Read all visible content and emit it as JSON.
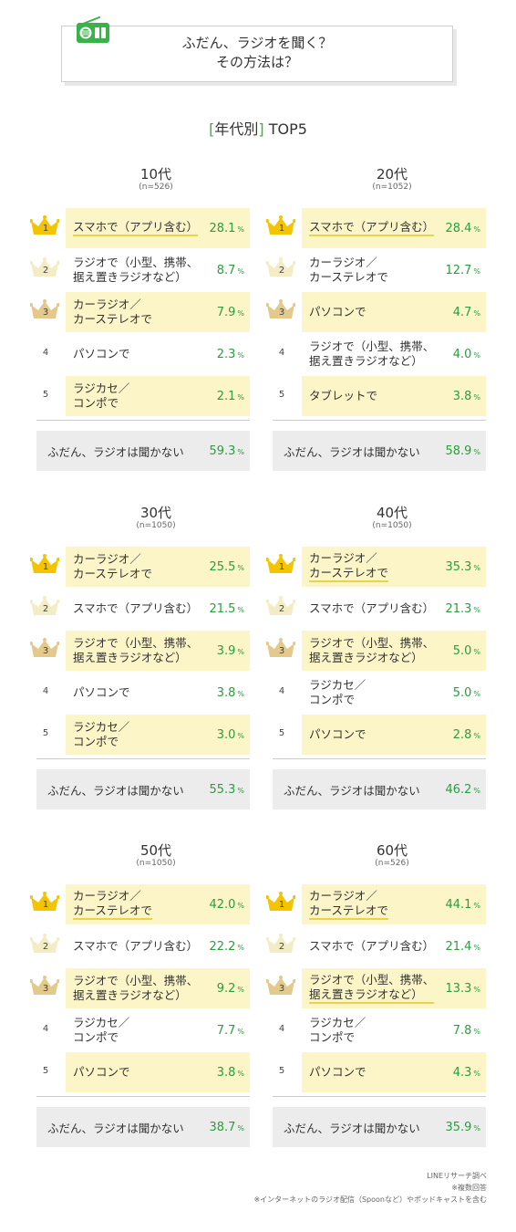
{
  "header": {
    "title_line1": "ふだん、ラジオを聞く？",
    "title_line2": "その方法は？",
    "icon": "radio-icon"
  },
  "section": {
    "bracket_open": "[",
    "label": "年代別",
    "bracket_close": "]",
    "suffix": "TOP5"
  },
  "chart_data": [
    {
      "type": "table",
      "age": "10代",
      "n": "(n=526)",
      "rows": [
        {
          "rank": "1",
          "label": "スマホで（アプリ含む）",
          "value": "28.1",
          "highlight": true,
          "underline": true
        },
        {
          "rank": "2",
          "label": "ラジオで（小型、携帯、\n据え置きラジオなど）",
          "value": "8.7",
          "highlight": false,
          "underline": false
        },
        {
          "rank": "3",
          "label": "カーラジオ／\nカーステレオで",
          "value": "7.9",
          "highlight": true,
          "underline": false
        },
        {
          "rank": "4",
          "label": "パソコンで",
          "value": "2.3",
          "highlight": false,
          "underline": false
        },
        {
          "rank": "5",
          "label": "ラジカセ／\nコンポで",
          "value": "2.1",
          "highlight": true,
          "underline": false
        }
      ],
      "no_radio": {
        "label": "ふだん、ラジオは聞かない",
        "value": "59.3"
      }
    },
    {
      "type": "table",
      "age": "20代",
      "n": "(n=1052)",
      "rows": [
        {
          "rank": "1",
          "label": "スマホで（アプリ含む）",
          "value": "28.4",
          "highlight": true,
          "underline": true
        },
        {
          "rank": "2",
          "label": "カーラジオ／\nカーステレオで",
          "value": "12.7",
          "highlight": false,
          "underline": false
        },
        {
          "rank": "3",
          "label": "パソコンで",
          "value": "4.7",
          "highlight": true,
          "underline": false
        },
        {
          "rank": "4",
          "label": "ラジオで（小型、携帯、\n据え置きラジオなど）",
          "value": "4.0",
          "highlight": false,
          "underline": false
        },
        {
          "rank": "5",
          "label": "タブレットで",
          "value": "3.8",
          "highlight": true,
          "underline": false
        }
      ],
      "no_radio": {
        "label": "ふだん、ラジオは聞かない",
        "value": "58.9"
      }
    },
    {
      "type": "table",
      "age": "30代",
      "n": "(n=1050)",
      "rows": [
        {
          "rank": "1",
          "label": "カーラジオ／\nカーステレオで",
          "value": "25.5",
          "highlight": true,
          "underline": false
        },
        {
          "rank": "2",
          "label": "スマホで（アプリ含む）",
          "value": "21.5",
          "highlight": false,
          "underline": false
        },
        {
          "rank": "3",
          "label": "ラジオで（小型、携帯、\n据え置きラジオなど）",
          "value": "3.9",
          "highlight": true,
          "underline": false
        },
        {
          "rank": "4",
          "label": "パソコンで",
          "value": "3.8",
          "highlight": false,
          "underline": false
        },
        {
          "rank": "5",
          "label": "ラジカセ／\nコンポで",
          "value": "3.0",
          "highlight": true,
          "underline": false
        }
      ],
      "no_radio": {
        "label": "ふだん、ラジオは聞かない",
        "value": "55.3"
      }
    },
    {
      "type": "table",
      "age": "40代",
      "n": "(n=1050)",
      "rows": [
        {
          "rank": "1",
          "label": "カーラジオ／\nカーステレオで",
          "value": "35.3",
          "highlight": true,
          "underline": true
        },
        {
          "rank": "2",
          "label": "スマホで（アプリ含む）",
          "value": "21.3",
          "highlight": false,
          "underline": false
        },
        {
          "rank": "3",
          "label": "ラジオで（小型、携帯、\n据え置きラジオなど）",
          "value": "5.0",
          "highlight": true,
          "underline": false
        },
        {
          "rank": "4",
          "label": "ラジカセ／\nコンポで",
          "value": "5.0",
          "highlight": false,
          "underline": false
        },
        {
          "rank": "5",
          "label": "パソコンで",
          "value": "2.8",
          "highlight": true,
          "underline": false
        }
      ],
      "no_radio": {
        "label": "ふだん、ラジオは聞かない",
        "value": "46.2"
      }
    },
    {
      "type": "table",
      "age": "50代",
      "n": "(n=1050)",
      "rows": [
        {
          "rank": "1",
          "label": "カーラジオ／\nカーステレオで",
          "value": "42.0",
          "highlight": true,
          "underline": true
        },
        {
          "rank": "2",
          "label": "スマホで（アプリ含む）",
          "value": "22.2",
          "highlight": false,
          "underline": false
        },
        {
          "rank": "3",
          "label": "ラジオで（小型、携帯、\n据え置きラジオなど）",
          "value": "9.2",
          "highlight": true,
          "underline": false
        },
        {
          "rank": "4",
          "label": "ラジカセ／\nコンポで",
          "value": "7.7",
          "highlight": false,
          "underline": false
        },
        {
          "rank": "5",
          "label": "パソコンで",
          "value": "3.8",
          "highlight": true,
          "underline": false
        }
      ],
      "no_radio": {
        "label": "ふだん、ラジオは聞かない",
        "value": "38.7"
      }
    },
    {
      "type": "table",
      "age": "60代",
      "n": "(n=526)",
      "rows": [
        {
          "rank": "1",
          "label": "カーラジオ／\nカーステレオで",
          "value": "44.1",
          "highlight": true,
          "underline": true
        },
        {
          "rank": "2",
          "label": "スマホで（アプリ含む）",
          "value": "21.4",
          "highlight": false,
          "underline": false
        },
        {
          "rank": "3",
          "label": "ラジオで（小型、携帯、\n据え置きラジオなど）",
          "value": "13.3",
          "highlight": true,
          "underline": true
        },
        {
          "rank": "4",
          "label": "ラジカセ／\nコンポで",
          "value": "7.8",
          "highlight": false,
          "underline": false
        },
        {
          "rank": "5",
          "label": "パソコンで",
          "value": "4.3",
          "highlight": true,
          "underline": false
        }
      ],
      "no_radio": {
        "label": "ふだん、ラジオは聞かない",
        "value": "35.9"
      }
    }
  ],
  "unit": "%",
  "colors": {
    "accent_green": "#3bb14a",
    "value_green": "#2a9e3e",
    "highlight": "#fcf5c7",
    "gold": "#f5c400",
    "silver": "#f4ecc4",
    "bronze": "#e3c98c",
    "no_radio_bg": "#ececec"
  },
  "footer": {
    "line1": "LINEリサーチ調べ",
    "line2": "※複数回答",
    "line3": "※インターネットのラジオ配信（Spoonなど）やポッドキャストを含む"
  }
}
